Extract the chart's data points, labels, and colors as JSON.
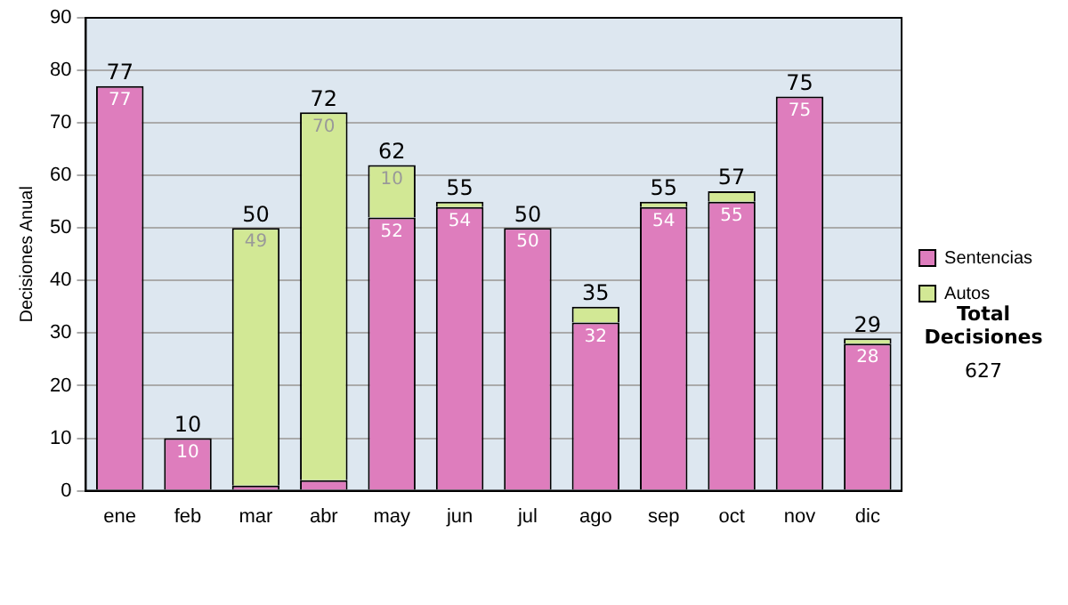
{
  "chart_data": {
    "type": "bar",
    "stacked": true,
    "ylabel": "Decisiones Anual",
    "categories": [
      "ene",
      "feb",
      "mar",
      "abr",
      "may",
      "jun",
      "jul",
      "ago",
      "sep",
      "oct",
      "nov",
      "dic"
    ],
    "series": [
      {
        "name": "Sentencias",
        "color": "#de7dbd",
        "values": [
          77,
          10,
          1,
          2,
          52,
          54,
          50,
          32,
          54,
          55,
          75,
          28
        ],
        "value_labels": [
          "77",
          "10",
          null,
          null,
          "52",
          "54",
          "50",
          "32",
          "54",
          "55",
          "75",
          "28"
        ]
      },
      {
        "name": "Autos",
        "color": "#d2e895",
        "values": [
          0,
          0,
          49,
          70,
          10,
          1,
          0,
          3,
          1,
          2,
          0,
          1
        ],
        "value_labels": [
          null,
          null,
          "49",
          "70",
          "10",
          null,
          null,
          null,
          null,
          null,
          null,
          null
        ]
      }
    ],
    "totals": [
      "77",
      "10",
      "50",
      "72",
      "62",
      "55",
      "50",
      "35",
      "55",
      "57",
      "75",
      "29"
    ],
    "ylim": [
      0,
      90
    ],
    "yticks": [
      0,
      10,
      20,
      30,
      40,
      50,
      60,
      70,
      80,
      90
    ],
    "grid": "y",
    "legend": "right",
    "annotations": [
      "Total Decisiones",
      "627"
    ]
  }
}
